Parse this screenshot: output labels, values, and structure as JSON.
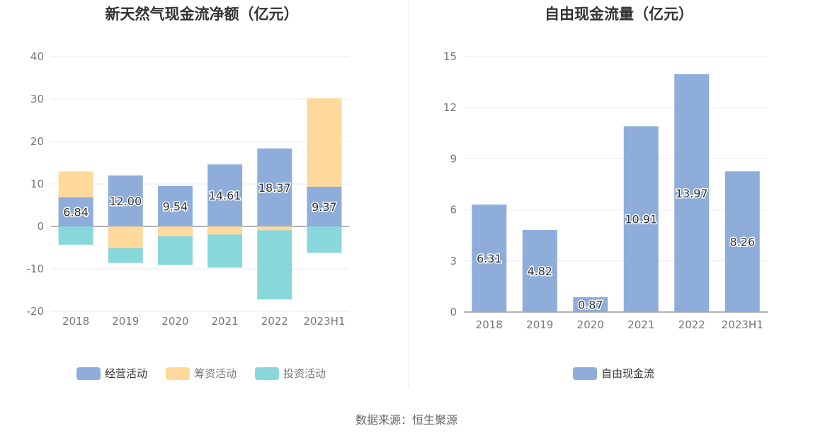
{
  "source_text": "数据来源：恒生聚源",
  "colors": {
    "operating": "#8eadda",
    "financing": "#ffd99b",
    "investing": "#88d7da",
    "grid": "#e6e9f3",
    "axis": "#999999",
    "tick": "#777777"
  },
  "chart_data": [
    {
      "type": "bar",
      "stacked": true,
      "title": "新天然气现金流净额（亿元）",
      "categories": [
        "2018",
        "2019",
        "2020",
        "2021",
        "2022",
        "2023H1"
      ],
      "yticks": [
        "40",
        "30",
        "20",
        "10",
        "0",
        "-10",
        "-20"
      ],
      "ylim": [
        -20,
        40
      ],
      "legend_position": "bottom",
      "series": [
        {
          "name": "经营活动",
          "color": "#8eadda",
          "values": [
            6.84,
            12.0,
            9.54,
            14.61,
            18.37,
            9.37
          ],
          "labels": [
            "6.84",
            "12.00",
            "9.54",
            "14.61",
            "18.37",
            "9.37"
          ]
        },
        {
          "name": "筹资活动",
          "color": "#ffd99b",
          "values": [
            6.1,
            -5.1,
            -2.3,
            -1.9,
            -0.9,
            20.8
          ]
        },
        {
          "name": "投资活动",
          "color": "#88d7da",
          "values": [
            -4.3,
            -3.5,
            -6.8,
            -7.8,
            -16.3,
            -6.2
          ]
        }
      ]
    },
    {
      "type": "bar",
      "title": "自由现金流量（亿元）",
      "categories": [
        "2018",
        "2019",
        "2020",
        "2021",
        "2022",
        "2023H1"
      ],
      "yticks": [
        "15",
        "12",
        "9",
        "6",
        "3",
        "0"
      ],
      "ylim": [
        0,
        15
      ],
      "legend_position": "bottom",
      "series": [
        {
          "name": "自由现金流",
          "color": "#8eadda",
          "values": [
            6.31,
            4.82,
            0.87,
            10.91,
            13.97,
            8.26
          ],
          "labels": [
            "6.31",
            "4.82",
            "0.87",
            "10.91",
            "13.97",
            "8.26"
          ]
        }
      ]
    }
  ]
}
